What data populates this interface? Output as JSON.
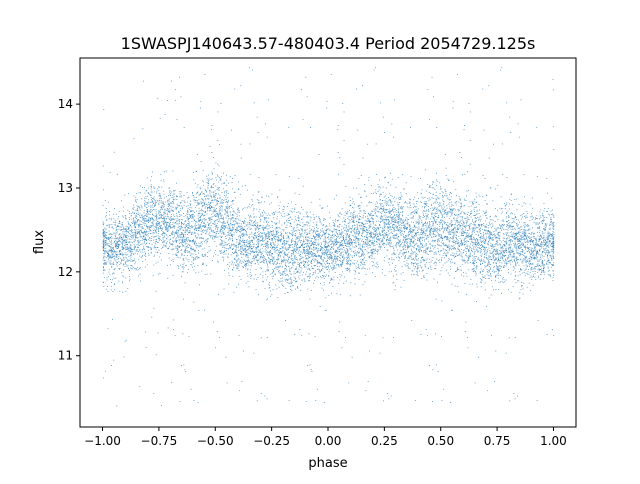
{
  "chart_data": {
    "type": "scatter",
    "title": "1SWASPJ140643.57-480403.4 Period 2054729.125s",
    "xlabel": "phase",
    "ylabel": "flux",
    "xlim": [
      -1.1,
      1.1
    ],
    "ylim": [
      10.15,
      14.55
    ],
    "x_ticks": [
      -1.0,
      -0.75,
      -0.5,
      -0.25,
      0.0,
      0.25,
      0.5,
      0.75,
      1.0
    ],
    "x_tick_labels": [
      "−1.00",
      "−0.75",
      "−0.50",
      "−0.25",
      "0.00",
      "0.25",
      "0.50",
      "0.75",
      "1.00"
    ],
    "y_ticks": [
      11,
      12,
      13,
      14
    ],
    "y_tick_labels": [
      "11",
      "12",
      "13",
      "14"
    ],
    "grid": false,
    "legend": "none",
    "point_color": "#1f77b4",
    "series": [
      {
        "x": [
          -1.0,
          -0.98,
          -0.96,
          -0.94,
          -0.92,
          -0.9,
          -0.88,
          -0.86,
          -0.84,
          -0.82,
          -0.8,
          -0.78,
          -0.76,
          -0.74,
          -0.72,
          -0.7,
          -0.68,
          -0.66,
          -0.64,
          -0.62,
          -0.6,
          -0.58,
          -0.56,
          -0.54,
          -0.52,
          -0.5,
          -0.48,
          -0.46,
          -0.44,
          -0.42,
          -0.4,
          -0.38,
          -0.36,
          -0.34,
          -0.32,
          -0.3,
          -0.28,
          -0.26,
          -0.24,
          -0.22,
          -0.2,
          -0.18,
          -0.16,
          -0.14,
          -0.12,
          -0.1,
          -0.08,
          -0.06,
          -0.04,
          -0.02,
          0.0,
          0.02,
          0.04,
          0.06,
          0.08,
          0.1,
          0.12,
          0.14,
          0.16,
          0.18,
          0.2,
          0.22,
          0.24,
          0.26,
          0.28,
          0.3,
          0.32,
          0.34,
          0.36,
          0.38,
          0.4,
          0.42,
          0.44,
          0.46,
          0.48,
          0.5,
          0.52,
          0.54,
          0.56,
          0.58,
          0.6,
          0.62,
          0.64,
          0.66,
          0.68,
          0.7,
          0.72,
          0.74,
          0.76,
          0.78,
          0.8,
          0.82,
          0.84,
          0.86,
          0.88,
          0.9,
          0.92,
          0.94,
          0.96,
          0.98,
          1.0
        ],
        "y": [
          12.3,
          12.35,
          12.3,
          12.3,
          12.3,
          12.35,
          12.4,
          12.45,
          12.5,
          12.55,
          12.6,
          12.65,
          12.6,
          12.6,
          12.6,
          12.6,
          12.55,
          12.5,
          12.45,
          12.5,
          12.5,
          12.55,
          12.6,
          12.65,
          12.7,
          12.7,
          12.65,
          12.6,
          12.55,
          12.5,
          12.45,
          12.4,
          12.35,
          12.35,
          12.35,
          12.35,
          12.35,
          12.3,
          12.3,
          12.3,
          12.3,
          12.25,
          12.25,
          12.3,
          12.3,
          12.3,
          12.3,
          12.3,
          12.3,
          12.25,
          12.25,
          12.25,
          12.3,
          12.3,
          12.35,
          12.4,
          12.45,
          12.45,
          12.45,
          12.5,
          12.5,
          12.5,
          12.55,
          12.55,
          12.55,
          12.5,
          12.5,
          12.45,
          12.45,
          12.4,
          12.4,
          12.45,
          12.5,
          12.55,
          12.6,
          12.55,
          12.55,
          12.5,
          12.45,
          12.45,
          12.4,
          12.4,
          12.4,
          12.4,
          12.35,
          12.35,
          12.35,
          12.3,
          12.3,
          12.3,
          12.35,
          12.35,
          12.3,
          12.3,
          12.3,
          12.3,
          12.3,
          12.3,
          12.35,
          12.35,
          12.35
        ],
        "spread": [
          0.34,
          0.36,
          0.35,
          0.35,
          0.36,
          0.38,
          0.4,
          0.42,
          0.45,
          0.44,
          0.42,
          0.4,
          0.4,
          0.38,
          0.38,
          0.4,
          0.42,
          0.42,
          0.4,
          0.42,
          0.46,
          0.48,
          0.48,
          0.46,
          0.44,
          0.46,
          0.48,
          0.47,
          0.45,
          0.43,
          0.42,
          0.42,
          0.4,
          0.4,
          0.42,
          0.44,
          0.44,
          0.42,
          0.42,
          0.44,
          0.46,
          0.46,
          0.45,
          0.42,
          0.4,
          0.38,
          0.36,
          0.36,
          0.38,
          0.38,
          0.36,
          0.34,
          0.34,
          0.35,
          0.37,
          0.4,
          0.42,
          0.42,
          0.4,
          0.4,
          0.42,
          0.42,
          0.42,
          0.42,
          0.44,
          0.42,
          0.4,
          0.4,
          0.4,
          0.4,
          0.42,
          0.44,
          0.46,
          0.48,
          0.5,
          0.48,
          0.46,
          0.44,
          0.42,
          0.42,
          0.42,
          0.44,
          0.44,
          0.44,
          0.42,
          0.44,
          0.44,
          0.44,
          0.42,
          0.4,
          0.42,
          0.42,
          0.4,
          0.4,
          0.38,
          0.38,
          0.36,
          0.36,
          0.36,
          0.34,
          0.34
        ]
      }
    ]
  }
}
